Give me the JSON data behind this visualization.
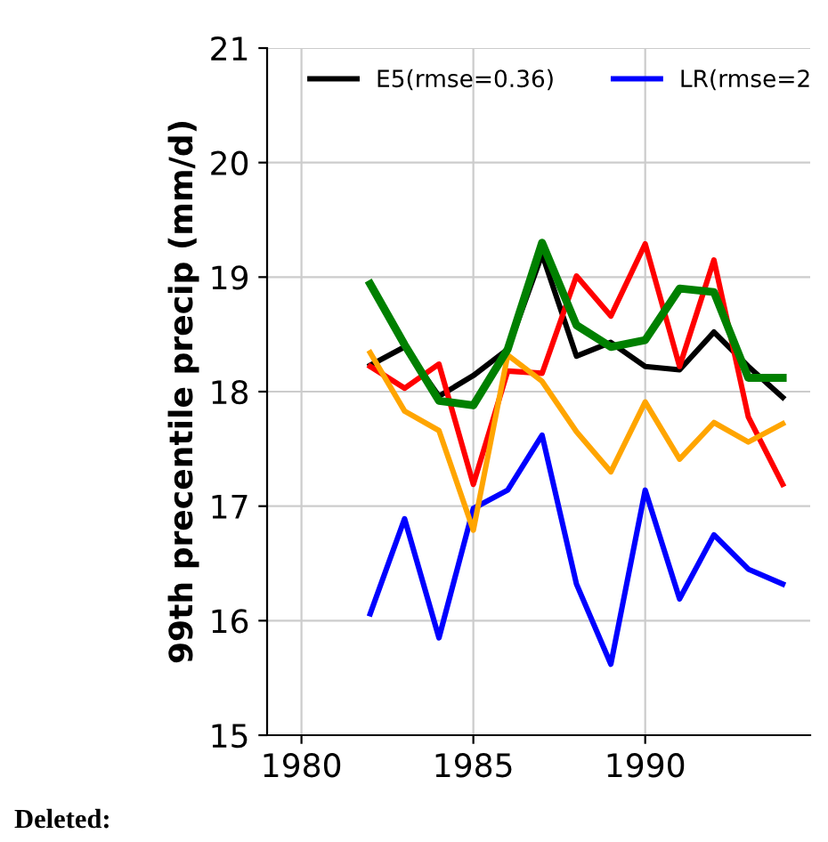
{
  "chart_data": {
    "type": "line",
    "ylabel": "99th precentile precip (mm/d)",
    "x": [
      1982,
      1983,
      1984,
      1985,
      1986,
      1987,
      1988,
      1989,
      1990,
      1991,
      1992,
      1993,
      1994
    ],
    "series": [
      {
        "name": "E5(rmse=0.36)",
        "color": "#000000",
        "values": [
          18.23,
          18.39,
          17.96,
          18.14,
          18.37,
          19.2,
          18.31,
          18.43,
          18.22,
          18.19,
          18.52,
          18.22,
          17.95
        ]
      },
      {
        "name": "LR(rmse=2",
        "color": "#0000ff",
        "values": [
          16.06,
          16.89,
          15.85,
          16.98,
          17.14,
          17.62,
          16.32,
          15.62,
          17.14,
          16.19,
          16.75,
          16.45,
          16.32
        ]
      },
      {
        "color": "#ff0000",
        "values": [
          18.22,
          18.03,
          18.24,
          17.19,
          18.18,
          18.16,
          19.01,
          18.66,
          19.29,
          18.22,
          19.15,
          17.78,
          17.19
        ]
      },
      {
        "color": "#ffa500",
        "values": [
          18.34,
          17.83,
          17.66,
          16.79,
          18.32,
          18.09,
          17.65,
          17.3,
          17.91,
          17.41,
          17.73,
          17.56,
          17.72
        ]
      },
      {
        "color": "#008000",
        "values": [
          18.94,
          18.41,
          17.92,
          17.88,
          18.37,
          19.3,
          18.58,
          18.39,
          18.45,
          18.9,
          18.87,
          18.12,
          18.12
        ]
      }
    ],
    "xlim": [
      1979,
      1994.8
    ],
    "xticks": [
      1980,
      1985,
      1990
    ],
    "ylim": [
      15,
      21
    ],
    "yticks": [
      15,
      16,
      17,
      18,
      19,
      20,
      21
    ],
    "grid": true,
    "legend": "top",
    "line_style": "solid",
    "annotations": [
      "Deleted:"
    ]
  }
}
